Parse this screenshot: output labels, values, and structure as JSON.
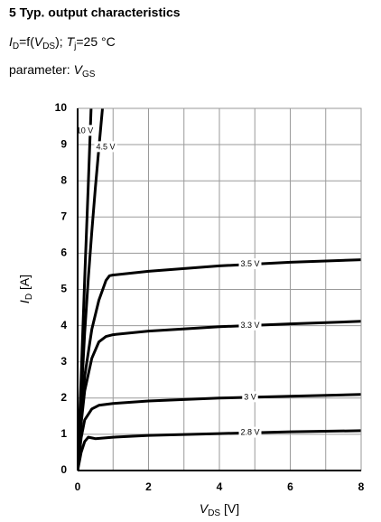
{
  "chart_data": {
    "type": "line",
    "title": "5 Typ. output characteristics",
    "subtitle_parts": [
      "I",
      "D",
      "=f(",
      "V",
      "DS",
      "); ",
      "T",
      "j",
      "=25 °C"
    ],
    "parameter_parts": [
      "parameter: ",
      "V",
      "GS"
    ],
    "ylabel_parts": [
      "I",
      "D",
      " [A]"
    ],
    "xlabel_parts": [
      "V",
      "DS",
      " [V]"
    ],
    "xlim": [
      0,
      8
    ],
    "ylim": [
      0,
      10
    ],
    "xticks": [
      0,
      2,
      4,
      6,
      8
    ],
    "yticks": [
      0,
      1,
      2,
      3,
      4,
      5,
      6,
      7,
      8,
      9,
      10
    ],
    "x_minor_grid": [
      1,
      3,
      5,
      7
    ],
    "grid": true,
    "color": "#000000",
    "series": [
      {
        "name": "2.8 V",
        "x": [
          0,
          0.1,
          0.2,
          0.3,
          0.4,
          0.5,
          1,
          2,
          4,
          6,
          8
        ],
        "values": [
          0,
          0.5,
          0.8,
          0.92,
          0.9,
          0.88,
          0.92,
          0.97,
          1.02,
          1.07,
          1.1
        ]
      },
      {
        "name": "3 V",
        "x": [
          0,
          0.1,
          0.2,
          0.4,
          0.6,
          1,
          2,
          4,
          6,
          8
        ],
        "values": [
          0,
          0.9,
          1.4,
          1.7,
          1.8,
          1.85,
          1.92,
          2.0,
          2.05,
          2.1
        ]
      },
      {
        "name": "3.3 V",
        "x": [
          0,
          0.1,
          0.2,
          0.4,
          0.6,
          0.8,
          1,
          2,
          4,
          6,
          8
        ],
        "values": [
          0,
          1.3,
          2.2,
          3.1,
          3.55,
          3.7,
          3.75,
          3.85,
          3.97,
          4.05,
          4.12
        ]
      },
      {
        "name": "3.5 V",
        "x": [
          0,
          0.1,
          0.2,
          0.4,
          0.6,
          0.8,
          0.9,
          1,
          2,
          4,
          6,
          8
        ],
        "values": [
          0,
          1.5,
          2.6,
          3.9,
          4.7,
          5.25,
          5.38,
          5.4,
          5.5,
          5.65,
          5.75,
          5.82
        ]
      },
      {
        "name": "4.5 V",
        "x": [
          0,
          0.1,
          0.2,
          0.3,
          0.4,
          0.5,
          0.6,
          0.7
        ],
        "values": [
          0,
          2,
          3.8,
          5.3,
          6.6,
          7.8,
          8.9,
          10
        ]
      },
      {
        "name": "10 V",
        "x": [
          0,
          0.1,
          0.2,
          0.3,
          0.38
        ],
        "values": [
          0,
          2.6,
          5.3,
          7.9,
          10
        ]
      }
    ]
  }
}
